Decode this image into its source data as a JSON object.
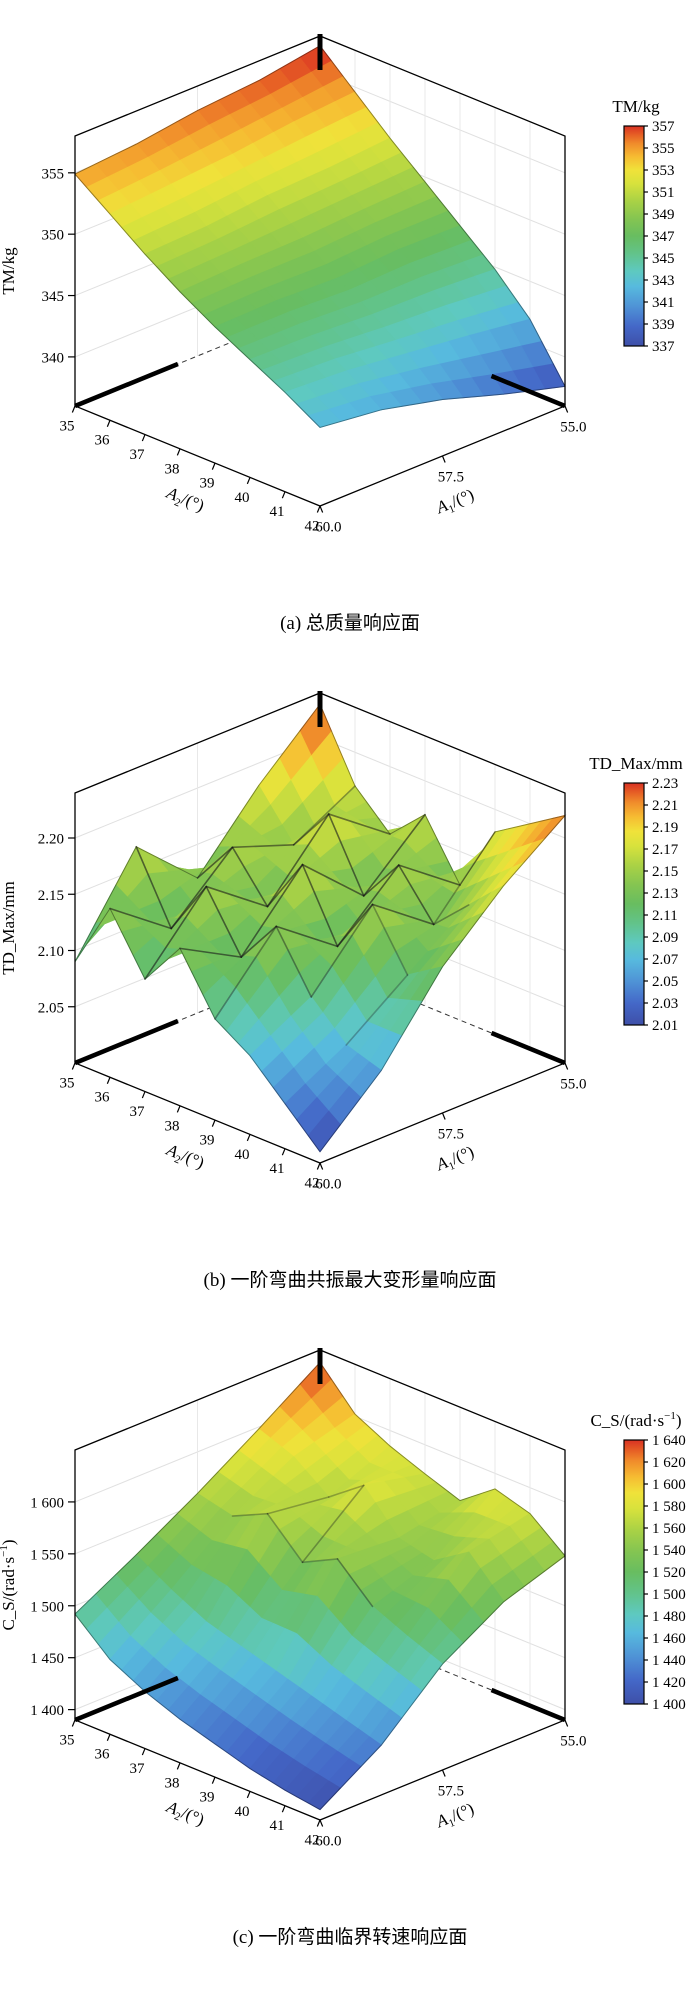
{
  "figure": {
    "background": "#ffffff"
  },
  "colormap": [
    {
      "t": 0.0,
      "c": "#3e4fa8"
    },
    {
      "t": 0.09,
      "c": "#4468c8"
    },
    {
      "t": 0.18,
      "c": "#4f93d6"
    },
    {
      "t": 0.27,
      "c": "#57bade"
    },
    {
      "t": 0.34,
      "c": "#5ec9c0"
    },
    {
      "t": 0.42,
      "c": "#62c38a"
    },
    {
      "t": 0.5,
      "c": "#68bd60"
    },
    {
      "t": 0.58,
      "c": "#85c551"
    },
    {
      "t": 0.66,
      "c": "#aad245"
    },
    {
      "t": 0.74,
      "c": "#d8e23c"
    },
    {
      "t": 0.8,
      "c": "#f0e23a"
    },
    {
      "t": 0.86,
      "c": "#f6bc32"
    },
    {
      "t": 0.92,
      "c": "#f08c2b"
    },
    {
      "t": 0.96,
      "c": "#e65f25"
    },
    {
      "t": 1.0,
      "c": "#d93123"
    }
  ],
  "chart_data": [
    {
      "type": "surface3d",
      "caption": "(a) 总质量响应面",
      "x_axis": {
        "title_parts": [
          {
            "text": "A",
            "italic": true
          },
          {
            "text": "2",
            "sub": true
          },
          {
            "text": "/(°)"
          }
        ],
        "min": 35,
        "max": 42,
        "ticks": [
          {
            "v": 35,
            "label": "35"
          },
          {
            "v": 36,
            "label": "36"
          },
          {
            "v": 37,
            "label": "37"
          },
          {
            "v": 38,
            "label": "38"
          },
          {
            "v": 39,
            "label": "39"
          },
          {
            "v": 40,
            "label": "40"
          },
          {
            "v": 41,
            "label": "41"
          },
          {
            "v": 42,
            "label": "42"
          }
        ]
      },
      "y_axis": {
        "title_parts": [
          {
            "text": "A",
            "italic": true
          },
          {
            "text": "1",
            "sub": true
          },
          {
            "text": "/(°)"
          }
        ],
        "min": 55,
        "max": 60,
        "ticks": [
          {
            "v": 55,
            "label": "55.0"
          },
          {
            "v": 57.5,
            "label": "57.5"
          },
          {
            "v": 60,
            "label": "60.0"
          }
        ]
      },
      "z_axis": {
        "title_parts": [
          {
            "text": "TM/kg"
          }
        ],
        "min": 336,
        "max": 358,
        "ticks": [
          {
            "v": 355,
            "label": "355"
          },
          {
            "v": 350,
            "label": "350"
          },
          {
            "v": 345,
            "label": "345"
          },
          {
            "v": 340,
            "label": "340"
          }
        ]
      },
      "colorbar": {
        "title_parts": [
          {
            "text": "TM/kg"
          }
        ],
        "min": 337,
        "max": 357,
        "ticks": [
          "357",
          "355",
          "353",
          "351",
          "349",
          "347",
          "345",
          "343",
          "341",
          "339",
          "337"
        ]
      },
      "grid": {
        "a2": [
          35,
          36,
          37,
          38,
          39,
          40,
          41,
          42
        ],
        "a1": [
          55,
          56.25,
          57.5,
          58.75,
          60
        ],
        "z": [
          [
            357.2,
            356.4,
            356.0,
            355.3,
            354.9
          ],
          [
            354.6,
            354.2,
            353.6,
            353.2,
            352.8
          ],
          [
            352.0,
            351.6,
            351.4,
            350.9,
            350.7
          ],
          [
            349.6,
            349.4,
            349.1,
            349.0,
            348.8
          ],
          [
            347.2,
            347.3,
            347.0,
            347.2,
            347.1
          ],
          [
            344.8,
            345.1,
            345.2,
            345.5,
            345.6
          ],
          [
            341.9,
            342.6,
            343.2,
            343.8,
            344.1
          ],
          [
            337.6,
            339.0,
            340.6,
            341.8,
            342.4
          ]
        ]
      }
    },
    {
      "type": "surface3d",
      "caption": "(b) 一阶弯曲共振最大变形量响应面",
      "x_axis": {
        "title_parts": [
          {
            "text": "A",
            "italic": true
          },
          {
            "text": "2",
            "sub": true
          },
          {
            "text": "/(°)"
          }
        ],
        "min": 35,
        "max": 42,
        "ticks": [
          {
            "v": 35,
            "label": "35"
          },
          {
            "v": 36,
            "label": "36"
          },
          {
            "v": 37,
            "label": "37"
          },
          {
            "v": 38,
            "label": "38"
          },
          {
            "v": 39,
            "label": "39"
          },
          {
            "v": 40,
            "label": "40"
          },
          {
            "v": 41,
            "label": "41"
          },
          {
            "v": 42,
            "label": "42"
          }
        ]
      },
      "y_axis": {
        "title_parts": [
          {
            "text": "A",
            "italic": true
          },
          {
            "text": "1",
            "sub": true
          },
          {
            "text": "/(°)"
          }
        ],
        "min": 55,
        "max": 60,
        "ticks": [
          {
            "v": 55,
            "label": "55.0"
          },
          {
            "v": 57.5,
            "label": "57.5"
          },
          {
            "v": 60,
            "label": "60.0"
          }
        ]
      },
      "z_axis": {
        "title_parts": [
          {
            "text": "TD_Max/mm"
          }
        ],
        "min": 2.0,
        "max": 2.24,
        "ticks": [
          {
            "v": 2.2,
            "label": "2.20"
          },
          {
            "v": 2.15,
            "label": "2.15"
          },
          {
            "v": 2.1,
            "label": "2.10"
          },
          {
            "v": 2.05,
            "label": "2.05"
          }
        ]
      },
      "colorbar": {
        "title_parts": [
          {
            "text": "TD_Max/mm"
          }
        ],
        "min": 2.01,
        "max": 2.23,
        "ticks": [
          "2.23",
          "2.21",
          "2.19",
          "2.17",
          "2.15",
          "2.13",
          "2.11",
          "2.09",
          "2.07",
          "2.05",
          "2.03",
          "2.01"
        ]
      },
      "grid": {
        "a2": [
          35,
          36,
          37,
          38,
          39,
          40,
          41,
          42
        ],
        "a1": [
          55,
          56.25,
          57.5,
          58.75,
          60
        ],
        "z": [
          [
            2.23,
            2.18,
            2.12,
            2.17,
            2.09
          ],
          [
            2.17,
            2.14,
            2.16,
            2.11,
            2.15
          ],
          [
            2.14,
            2.18,
            2.12,
            2.16,
            2.1
          ],
          [
            2.17,
            2.12,
            2.17,
            2.11,
            2.14
          ],
          [
            2.12,
            2.16,
            2.11,
            2.15,
            2.09
          ],
          [
            2.18,
            2.12,
            2.16,
            2.1,
            2.07
          ],
          [
            2.2,
            2.15,
            2.11,
            2.07,
            2.04
          ],
          [
            2.22,
            2.18,
            2.13,
            2.06,
            2.01
          ]
        ]
      }
    },
    {
      "type": "surface3d",
      "caption": "(c) 一阶弯曲临界转速响应面",
      "x_axis": {
        "title_parts": [
          {
            "text": "A",
            "italic": true
          },
          {
            "text": "2",
            "sub": true
          },
          {
            "text": "/(°)"
          }
        ],
        "min": 35,
        "max": 42,
        "ticks": [
          {
            "v": 35,
            "label": "35"
          },
          {
            "v": 36,
            "label": "36"
          },
          {
            "v": 37,
            "label": "37"
          },
          {
            "v": 38,
            "label": "38"
          },
          {
            "v": 39,
            "label": "39"
          },
          {
            "v": 40,
            "label": "40"
          },
          {
            "v": 41,
            "label": "41"
          },
          {
            "v": 42,
            "label": "42"
          }
        ]
      },
      "y_axis": {
        "title_parts": [
          {
            "text": "A",
            "italic": true
          },
          {
            "text": "1",
            "sub": true
          },
          {
            "text": "/(°)"
          }
        ],
        "min": 55,
        "max": 60,
        "ticks": [
          {
            "v": 55,
            "label": "55.0"
          },
          {
            "v": 57.5,
            "label": "57.5"
          },
          {
            "v": 60,
            "label": "60.0"
          }
        ]
      },
      "z_axis": {
        "title_parts": [
          {
            "text": "C_S/(rad·s"
          },
          {
            "text": "−1",
            "sup": true
          },
          {
            "text": ")"
          }
        ],
        "min": 1390,
        "max": 1650,
        "ticks": [
          {
            "v": 1600,
            "label": "1 600"
          },
          {
            "v": 1550,
            "label": "1 550"
          },
          {
            "v": 1500,
            "label": "1 500"
          },
          {
            "v": 1450,
            "label": "1 450"
          },
          {
            "v": 1400,
            "label": "1 400"
          }
        ]
      },
      "colorbar": {
        "title_parts": [
          {
            "text": "C_S/(rad·s"
          },
          {
            "text": "−1",
            "sup": true
          },
          {
            "text": ")"
          }
        ],
        "min": 1400,
        "max": 1640,
        "ticks": [
          "1 640",
          "1 620",
          "1 600",
          "1 580",
          "1 560",
          "1 540",
          "1 520",
          "1 500",
          "1 480",
          "1 460",
          "1 440",
          "1 420",
          "1 400"
        ]
      },
      "grid": {
        "a2": [
          35,
          36,
          37,
          38,
          39,
          40,
          41,
          42
        ],
        "a1": [
          55,
          56.25,
          57.5,
          58.75,
          60
        ],
        "z": [
          [
            1638,
            1598,
            1560,
            1525,
            1492
          ],
          [
            1602,
            1585,
            1552,
            1505,
            1462
          ],
          [
            1585,
            1560,
            1568,
            1488,
            1445
          ],
          [
            1572,
            1585,
            1535,
            1478,
            1432
          ],
          [
            1560,
            1548,
            1552,
            1468,
            1422
          ],
          [
            1585,
            1540,
            1520,
            1458,
            1412
          ],
          [
            1575,
            1562,
            1505,
            1448,
            1405
          ],
          [
            1548,
            1528,
            1492,
            1438,
            1400
          ]
        ]
      }
    }
  ]
}
